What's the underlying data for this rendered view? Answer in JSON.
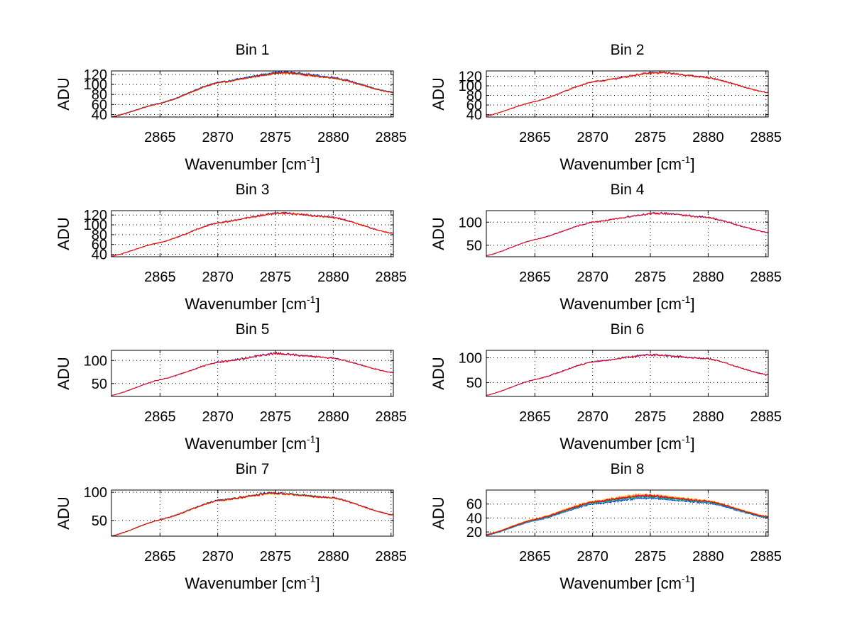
{
  "chart_data": [
    {
      "type": "line",
      "title": "Bin 1",
      "xlabel": "Wavenumber [cm",
      "xlabel_sup": "-1",
      "xlabel_end": "]",
      "ylabel": "ADU",
      "xlim": [
        2860.8,
        2885.2
      ],
      "ylim": [
        35,
        127
      ],
      "xticks": [
        2865,
        2870,
        2875,
        2880,
        2885
      ],
      "yticks": [
        40,
        60,
        80,
        100,
        120
      ],
      "grid": true,
      "peak_x": 2876.0,
      "curve": [
        [
          2860.8,
          35
        ],
        [
          2865,
          62
        ],
        [
          2870,
          103
        ],
        [
          2875,
          122
        ],
        [
          2876,
          123
        ],
        [
          2880,
          113
        ],
        [
          2885,
          84
        ]
      ],
      "series": [
        {
          "name": "",
          "color": "#0000ff",
          "offset": 2
        },
        {
          "name": "",
          "color": "#00bfbf",
          "offset": 1
        },
        {
          "name": "",
          "color": "#00a000",
          "offset": 0.5
        },
        {
          "name": "",
          "color": "#ff8c00",
          "offset": -0.5
        },
        {
          "name": "",
          "color": "#ff0000",
          "offset": 0
        }
      ]
    },
    {
      "type": "line",
      "title": "Bin 2",
      "xlabel": "Wavenumber [cm",
      "xlabel_sup": "-1",
      "xlabel_end": "]",
      "ylabel": "ADU",
      "xlim": [
        2860.8,
        2885.2
      ],
      "ylim": [
        35,
        131
      ],
      "xticks": [
        2865,
        2870,
        2875,
        2880,
        2885
      ],
      "yticks": [
        40,
        60,
        80,
        100,
        120
      ],
      "grid": true,
      "peak_x": 2876.0,
      "curve": [
        [
          2860.8,
          37
        ],
        [
          2865,
          67
        ],
        [
          2870,
          108
        ],
        [
          2875,
          126
        ],
        [
          2876,
          127
        ],
        [
          2880,
          117
        ],
        [
          2885,
          86
        ]
      ],
      "series": [
        {
          "name": "",
          "color": "#0000ff",
          "offset": 1
        },
        {
          "name": "",
          "color": "#ff8c00",
          "offset": 0.5
        },
        {
          "name": "",
          "color": "#ff0000",
          "offset": 0
        }
      ]
    },
    {
      "type": "line",
      "title": "Bin 3",
      "xlabel": "Wavenumber [cm",
      "xlabel_sup": "-1",
      "xlabel_end": "]",
      "ylabel": "ADU",
      "xlim": [
        2860.8,
        2885.2
      ],
      "ylim": [
        35,
        129
      ],
      "xticks": [
        2865,
        2870,
        2875,
        2880,
        2885
      ],
      "yticks": [
        40,
        60,
        80,
        100,
        120
      ],
      "grid": true,
      "peak_x": 2875.5,
      "curve": [
        [
          2860.8,
          36
        ],
        [
          2865,
          64
        ],
        [
          2870,
          104
        ],
        [
          2875,
          123
        ],
        [
          2875.5,
          124
        ],
        [
          2880,
          115
        ],
        [
          2885,
          83
        ]
      ],
      "series": [
        {
          "name": "",
          "color": "#0000ff",
          "offset": 1
        },
        {
          "name": "",
          "color": "#ff8c00",
          "offset": 0.5
        },
        {
          "name": "",
          "color": "#ff0000",
          "offset": 0
        }
      ]
    },
    {
      "type": "line",
      "title": "Bin 4",
      "xlabel": "Wavenumber [cm",
      "xlabel_sup": "-1",
      "xlabel_end": "]",
      "ylabel": "ADU",
      "xlim": [
        2860.8,
        2885.2
      ],
      "ylim": [
        25,
        125
      ],
      "xticks": [
        2865,
        2870,
        2875,
        2880,
        2885
      ],
      "yticks": [
        50,
        100
      ],
      "grid": true,
      "peak_x": 2876.0,
      "curve": [
        [
          2860.8,
          27
        ],
        [
          2865,
          62
        ],
        [
          2870,
          100
        ],
        [
          2875,
          118
        ],
        [
          2876,
          119
        ],
        [
          2880,
          110
        ],
        [
          2885,
          78
        ]
      ],
      "series": [
        {
          "name": "",
          "color": "#0000ff",
          "offset": 0.5
        },
        {
          "name": "",
          "color": "#ff0000",
          "offset": 0
        }
      ]
    },
    {
      "type": "line",
      "title": "Bin 5",
      "xlabel": "Wavenumber [cm",
      "xlabel_sup": "-1",
      "xlabel_end": "]",
      "ylabel": "ADU",
      "xlim": [
        2860.8,
        2885.2
      ],
      "ylim": [
        22,
        122
      ],
      "xticks": [
        2865,
        2870,
        2875,
        2880,
        2885
      ],
      "yticks": [
        50,
        100
      ],
      "grid": true,
      "peak_x": 2875.0,
      "curve": [
        [
          2860.8,
          24
        ],
        [
          2865,
          58
        ],
        [
          2870,
          96
        ],
        [
          2875,
          115
        ],
        [
          2880,
          105
        ],
        [
          2885,
          74
        ]
      ],
      "series": [
        {
          "name": "",
          "color": "#0000ff",
          "offset": 0.5
        },
        {
          "name": "",
          "color": "#ff0000",
          "offset": 0
        }
      ]
    },
    {
      "type": "line",
      "title": "Bin 6",
      "xlabel": "Wavenumber [cm",
      "xlabel_sup": "-1",
      "xlabel_end": "]",
      "ylabel": "ADU",
      "xlim": [
        2860.8,
        2885.2
      ],
      "ylim": [
        22,
        115
      ],
      "xticks": [
        2865,
        2870,
        2875,
        2880,
        2885
      ],
      "yticks": [
        50,
        100
      ],
      "grid": true,
      "peak_x": 2875.0,
      "curve": [
        [
          2860.8,
          24
        ],
        [
          2865,
          56
        ],
        [
          2870,
          92
        ],
        [
          2875,
          106
        ],
        [
          2880,
          98
        ],
        [
          2885,
          66
        ]
      ],
      "series": [
        {
          "name": "",
          "color": "#0000ff",
          "offset": 0.5
        },
        {
          "name": "",
          "color": "#ff0000",
          "offset": 0
        }
      ]
    },
    {
      "type": "line",
      "title": "Bin 7",
      "xlabel": "Wavenumber [cm",
      "xlabel_sup": "-1",
      "xlabel_end": "]",
      "ylabel": "ADU",
      "xlim": [
        2860.8,
        2885.2
      ],
      "ylim": [
        22,
        104
      ],
      "xticks": [
        2865,
        2870,
        2875,
        2880,
        2885
      ],
      "yticks": [
        50,
        100
      ],
      "grid": true,
      "peak_x": 2874.5,
      "curve": [
        [
          2860.8,
          22
        ],
        [
          2865,
          51
        ],
        [
          2870,
          85
        ],
        [
          2874.5,
          98
        ],
        [
          2875,
          98
        ],
        [
          2880,
          90
        ],
        [
          2885,
          60
        ]
      ],
      "series": [
        {
          "name": "",
          "color": "#0000ff",
          "offset": 1
        },
        {
          "name": "",
          "color": "#00a000",
          "offset": 0.5
        },
        {
          "name": "",
          "color": "#ff8c00",
          "offset": -0.5
        },
        {
          "name": "",
          "color": "#ff0000",
          "offset": 0
        }
      ]
    },
    {
      "type": "line",
      "title": "Bin 8",
      "xlabel": "Wavenumber [cm",
      "xlabel_sup": "-1",
      "xlabel_end": "]",
      "ylabel": "ADU",
      "xlim": [
        2860.8,
        2885.2
      ],
      "ylim": [
        14,
        80
      ],
      "xticks": [
        2865,
        2870,
        2875,
        2880,
        2885
      ],
      "yticks": [
        20,
        40,
        60
      ],
      "grid": true,
      "peak_x": 2874.0,
      "curve": [
        [
          2860.8,
          16
        ],
        [
          2865,
          38
        ],
        [
          2870,
          63
        ],
        [
          2874,
          72
        ],
        [
          2875,
          72
        ],
        [
          2880,
          64
        ],
        [
          2885,
          42
        ]
      ],
      "series": [
        {
          "name": "",
          "color": "#0000ff",
          "offset": -4
        },
        {
          "name": "",
          "color": "#00bfbf",
          "offset": -3
        },
        {
          "name": "",
          "color": "#00a000",
          "offset": -1.5
        },
        {
          "name": "",
          "color": "#bf00bf",
          "offset": -0.5
        },
        {
          "name": "",
          "color": "#ff8c00",
          "offset": 1.5
        },
        {
          "name": "",
          "color": "#ff0000",
          "offset": 0
        }
      ]
    }
  ]
}
